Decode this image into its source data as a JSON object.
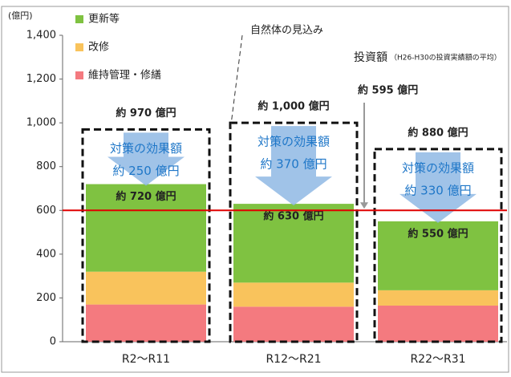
{
  "chart_data": {
    "type": "bar",
    "stacked": true,
    "y_unit_label": "(億円)",
    "categories": [
      "R2～R11",
      "R12～R21",
      "R22～R31"
    ],
    "series": [
      {
        "name": "維持管理・修繕",
        "color": "#f47a7f",
        "values": [
          170,
          160,
          165
        ]
      },
      {
        "name": "改修",
        "color": "#f9c35c",
        "values": [
          150,
          110,
          70
        ]
      },
      {
        "name": "更新等",
        "color": "#7fc241",
        "values": [
          400,
          360,
          315
        ]
      }
    ],
    "total_labels": [
      "約 720 億円",
      "約 630 億円",
      "約 550 億円"
    ],
    "projection": {
      "name": "自然体の見込み",
      "values": [
        970,
        1000,
        880
      ],
      "value_labels": [
        "約 970 億円",
        "約 1,000 億円",
        "約 880 億円"
      ]
    },
    "effect": {
      "name": "対策の効果額",
      "values": [
        250,
        370,
        330
      ],
      "value_labels": [
        "約 250 億円",
        "約 370 億円",
        "約 330 億円"
      ]
    },
    "investment": {
      "name": "投資額",
      "note": "（H26-H30の投資実績額の平均）",
      "value": 600,
      "value_label": "約 595 億円",
      "color": "#e00000"
    },
    "ylim": [
      0,
      1400
    ],
    "yticks": [
      0,
      200,
      400,
      600,
      800,
      {
        "value": 1000,
        "label": "1,000"
      },
      {
        "value": 1200,
        "label": "1,200"
      },
      {
        "value": 1400,
        "label": "1,400"
      }
    ],
    "legend": "top-left"
  }
}
